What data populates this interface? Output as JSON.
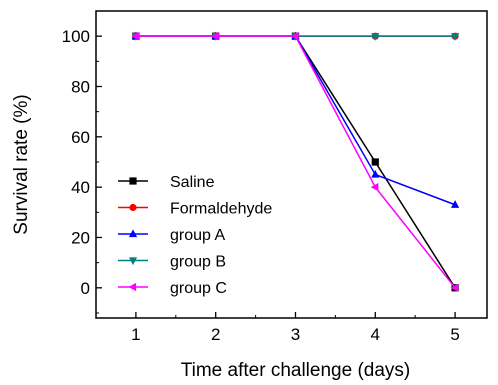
{
  "chart_data": {
    "type": "line",
    "title": "",
    "xlabel": "Time after challenge (days)",
    "ylabel": "Survival rate (%)",
    "xlim": [
      0.5,
      5.4
    ],
    "ylim": [
      -12,
      110
    ],
    "x": [
      1,
      2,
      3,
      4,
      5
    ],
    "x_ticks": [
      1,
      2,
      3,
      4,
      5
    ],
    "y_ticks": [
      0,
      20,
      40,
      60,
      80,
      100
    ],
    "grid": false,
    "legend_position": "bottom-left",
    "series": [
      {
        "name": "Saline",
        "values": [
          100,
          100,
          100,
          50,
          0
        ],
        "color": "#000000",
        "marker": "square"
      },
      {
        "name": "Formaldehyde",
        "values": [
          100,
          100,
          100,
          100,
          100
        ],
        "color": "#ff0000",
        "marker": "circle"
      },
      {
        "name": "group A",
        "values": [
          100,
          100,
          100,
          45,
          33
        ],
        "color": "#0000ff",
        "marker": "triangle-up"
      },
      {
        "name": "group B",
        "values": [
          100,
          100,
          100,
          100,
          100
        ],
        "color": "#008080",
        "marker": "triangle-down"
      },
      {
        "name": "group C",
        "values": [
          100,
          100,
          100,
          40,
          0
        ],
        "color": "#ff00ff",
        "marker": "triangle-left"
      }
    ]
  }
}
